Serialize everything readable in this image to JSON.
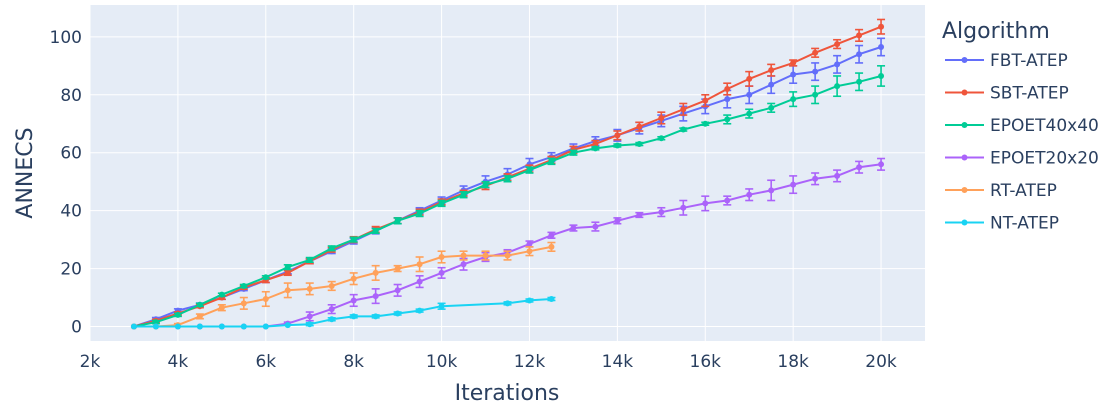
{
  "chart_data": {
    "type": "line",
    "xlabel": "Iterations",
    "ylabel": "ANNECS",
    "xlim": [
      2000,
      21000
    ],
    "ylim": [
      -5,
      111
    ],
    "x_ticks": [
      2000,
      4000,
      6000,
      8000,
      10000,
      12000,
      14000,
      16000,
      18000,
      20000
    ],
    "x_tick_labels": [
      "2k",
      "4k",
      "6k",
      "8k",
      "10k",
      "12k",
      "14k",
      "16k",
      "18k",
      "20k"
    ],
    "y_ticks": [
      0,
      20,
      40,
      60,
      80,
      100
    ],
    "y_tick_labels": [
      "0",
      "20",
      "40",
      "60",
      "80",
      "100"
    ],
    "grid": true,
    "legend_title": "Algorithm",
    "legend_position": "right",
    "series": [
      {
        "name": "FBT-ATEP",
        "color": "#636efa",
        "x": [
          3000,
          3500,
          4000,
          4500,
          5000,
          5500,
          6000,
          6500,
          7000,
          7500,
          8000,
          8500,
          9000,
          9500,
          10000,
          10500,
          11000,
          11500,
          12000,
          12500,
          13000,
          13500,
          14000,
          14500,
          15000,
          15500,
          16000,
          16500,
          17000,
          17500,
          18000,
          18500,
          19000,
          19500,
          20000
        ],
        "y": [
          0,
          2.5,
          5.5,
          7.5,
          10,
          13,
          16,
          19,
          22.5,
          26,
          29.5,
          33,
          36.5,
          40,
          43.5,
          47,
          50,
          52.5,
          56,
          58.5,
          61.5,
          64,
          66,
          68.5,
          71,
          73.5,
          76,
          78.5,
          80,
          83.5,
          87,
          88,
          90.5,
          94,
          96.5
        ],
        "err": [
          0,
          0.6,
          0.6,
          0.6,
          0.6,
          0.6,
          0.8,
          0.8,
          0.8,
          0.8,
          1,
          1,
          1,
          1,
          1.2,
          1.5,
          2,
          2,
          2,
          1.5,
          1.5,
          1.5,
          2,
          2,
          2,
          2.5,
          2.5,
          3,
          3,
          3,
          3,
          3,
          3,
          3,
          3
        ]
      },
      {
        "name": "SBT-ATEP",
        "color": "#ef553b",
        "x": [
          3000,
          3500,
          4000,
          4500,
          5000,
          5500,
          6000,
          6500,
          7000,
          7500,
          8000,
          8500,
          9000,
          9500,
          10000,
          10500,
          11000,
          11500,
          12000,
          12500,
          13000,
          13500,
          14000,
          14500,
          15000,
          15500,
          16000,
          16500,
          17000,
          17500,
          18000,
          18500,
          19000,
          19500,
          20000
        ],
        "y": [
          0,
          2,
          4.5,
          7,
          10,
          13.5,
          16,
          18.5,
          22.5,
          26.5,
          30,
          33.5,
          36.5,
          39.5,
          43,
          46,
          48.5,
          51.5,
          54.5,
          57.5,
          61,
          63,
          66,
          69,
          72,
          75,
          78,
          82,
          85.5,
          88.5,
          91,
          94.5,
          97.5,
          100.5,
          103.5
        ],
        "err": [
          0,
          0.5,
          0.5,
          0.5,
          0.6,
          0.6,
          0.8,
          0.8,
          0.8,
          0.8,
          1,
          1,
          1,
          1,
          1,
          1,
          1.2,
          1.2,
          1.2,
          1.2,
          1.2,
          1.2,
          1.5,
          1.5,
          2,
          2,
          2,
          2,
          2.5,
          2,
          1,
          1.5,
          1.5,
          2,
          2.5
        ]
      },
      {
        "name": "EPOET40x40",
        "color": "#00cc96",
        "x": [
          3000,
          3500,
          4000,
          4500,
          5000,
          5500,
          6000,
          6500,
          7000,
          7500,
          8000,
          8500,
          9000,
          9500,
          10000,
          10500,
          11000,
          11500,
          12000,
          12500,
          13000,
          13500,
          14000,
          14500,
          15000,
          15500,
          16000,
          16500,
          17000,
          17500,
          18000,
          18500,
          19000,
          19500,
          20000
        ],
        "y": [
          0,
          1.5,
          4,
          7.5,
          11,
          14,
          17,
          20.5,
          23,
          27,
          30,
          33,
          36.5,
          39,
          42.5,
          45.5,
          49,
          51,
          54,
          57,
          60,
          61.5,
          62.5,
          63,
          65,
          68,
          70,
          71.5,
          73.5,
          75.5,
          78.5,
          80,
          83,
          84.5,
          86.5
        ],
        "err": [
          0,
          0.5,
          0.5,
          0.5,
          0.5,
          0.5,
          0.5,
          0.8,
          0.8,
          0.8,
          0.8,
          0.8,
          1,
          1,
          1,
          1,
          1,
          1,
          1,
          1,
          0.8,
          0.5,
          0.5,
          0.5,
          0.5,
          0.5,
          0.5,
          1.5,
          1.5,
          1.5,
          2.5,
          3,
          3.5,
          3,
          3.5
        ]
      },
      {
        "name": "EPOET20x20",
        "color": "#ab63fa",
        "x": [
          3000,
          3500,
          4000,
          4500,
          5000,
          5500,
          6000,
          6500,
          7000,
          7500,
          8000,
          8500,
          9000,
          9500,
          10000,
          10500,
          11000,
          11500,
          12000,
          12500,
          13000,
          13500,
          14000,
          14500,
          15000,
          15500,
          16000,
          16500,
          17000,
          17500,
          18000,
          18500,
          19000,
          19500,
          20000
        ],
        "y": [
          0,
          0,
          0,
          0,
          0,
          0,
          0,
          1,
          3.5,
          6,
          9,
          10.5,
          12.5,
          15.5,
          18.5,
          21.5,
          24,
          25.5,
          28.5,
          31.5,
          34,
          34.5,
          36.5,
          38.5,
          39.5,
          41,
          42.5,
          43.5,
          45.5,
          47,
          49,
          51,
          52,
          55,
          56
        ],
        "err": [
          0,
          0,
          0,
          0,
          0,
          0,
          0,
          0.5,
          1.5,
          1.5,
          2,
          2.5,
          2,
          2,
          1.8,
          2,
          1.5,
          1,
          1,
          1,
          1,
          1.5,
          1,
          0.8,
          1.5,
          2.5,
          2.5,
          1.5,
          2,
          3.5,
          3,
          2,
          2,
          2,
          2
        ]
      },
      {
        "name": "RT-ATEP",
        "color": "#ffa15a",
        "x": [
          3000,
          3500,
          4000,
          4500,
          5000,
          5500,
          6000,
          6500,
          7000,
          7500,
          8000,
          8500,
          9000,
          9500,
          10000,
          10500,
          11000,
          11500,
          12000,
          12500
        ],
        "y": [
          0,
          0,
          0.5,
          3.5,
          6.5,
          8,
          9.5,
          12.5,
          13,
          14,
          16.5,
          18.5,
          20,
          21.5,
          24,
          24.5,
          24.5,
          24.5,
          26,
          27.5
        ],
        "err": [
          0,
          0,
          0.5,
          0.8,
          1,
          2,
          2.5,
          2.5,
          2,
          1.5,
          2,
          2.5,
          1,
          2.5,
          2,
          1.5,
          1.5,
          1.5,
          1.5,
          1.5
        ]
      },
      {
        "name": "NT-ATEP",
        "color": "#19d3f3",
        "x": [
          3000,
          3500,
          4000,
          4500,
          5000,
          5500,
          6000,
          6500,
          7000,
          7500,
          8000,
          8500,
          9000,
          9500,
          10000,
          11500,
          12000,
          12500
        ],
        "y": [
          0,
          0,
          0,
          0,
          0,
          0,
          0,
          0.5,
          0.8,
          2.5,
          3.5,
          3.5,
          4.5,
          5.5,
          7,
          8,
          9,
          9.5
        ],
        "err": [
          0,
          0,
          0,
          0,
          0,
          0,
          0,
          0,
          0.5,
          0.5,
          0.5,
          0.5,
          0.5,
          0.5,
          1,
          0.5,
          0.5,
          0.5
        ]
      }
    ]
  }
}
